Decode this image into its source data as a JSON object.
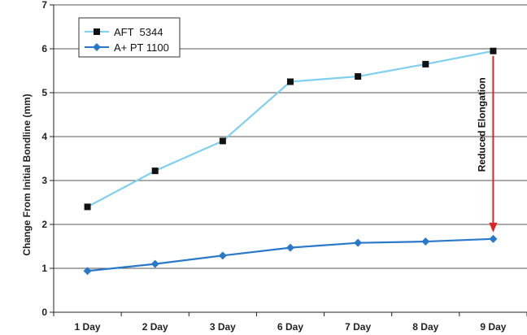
{
  "chart_data": {
    "type": "line",
    "title": "",
    "xlabel": "",
    "ylabel": "Change From Initial Bondline (mm)",
    "categories": [
      "1 Day",
      "2 Day",
      "3 Day",
      "6 Day",
      "7 Day",
      "8 Day",
      "9 Day"
    ],
    "ylim": [
      0,
      7
    ],
    "yticks": [
      0,
      1,
      2,
      3,
      4,
      5,
      6,
      7
    ],
    "grid": true,
    "legend_position": "top-left",
    "series": [
      {
        "name": "AFT  5344",
        "marker": "square",
        "line_color": "#7fcfee",
        "marker_color": "#111111",
        "values": [
          2.4,
          3.22,
          3.9,
          5.25,
          5.37,
          5.65,
          5.95
        ]
      },
      {
        "name": "A+ PT 1100",
        "marker": "diamond",
        "line_color": "#2a78c8",
        "marker_color": "#2a78c8",
        "values": [
          0.94,
          1.1,
          1.29,
          1.47,
          1.58,
          1.61,
          1.67
        ]
      }
    ],
    "annotation": {
      "text": "Reduced Elongation",
      "category": "9 Day",
      "y_from": 5.95,
      "y_to": 1.67,
      "color": "#e32222"
    }
  }
}
